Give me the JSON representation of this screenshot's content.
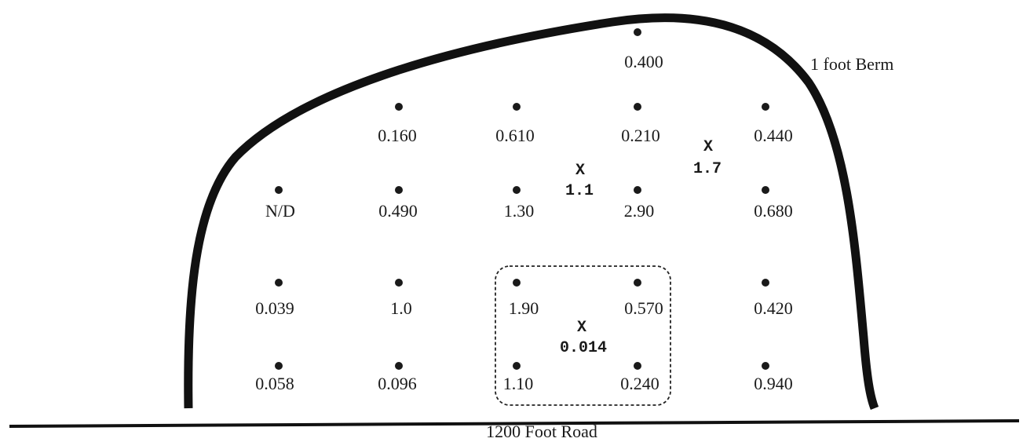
{
  "labels": {
    "berm": "1 foot Berm",
    "road": "1200 Foot Road"
  },
  "sample_points": [
    {
      "id": "p-top",
      "value": "0.400"
    },
    {
      "id": "p-r1c2",
      "value": "0.160"
    },
    {
      "id": "p-r1c3",
      "value": "0.610"
    },
    {
      "id": "p-r1c4",
      "value": "0.210"
    },
    {
      "id": "p-r1c5",
      "value": "0.440"
    },
    {
      "id": "p-r2c1",
      "value": "N/D"
    },
    {
      "id": "p-r2c2",
      "value": "0.490"
    },
    {
      "id": "p-r2c3",
      "value": "1.30"
    },
    {
      "id": "p-r2c4",
      "value": "2.90"
    },
    {
      "id": "p-r2c5",
      "value": "0.680"
    },
    {
      "id": "p-r3c1",
      "value": "0.039"
    },
    {
      "id": "p-r3c2",
      "value": "1.0"
    },
    {
      "id": "p-r3c3",
      "value": "1.90"
    },
    {
      "id": "p-r3c4",
      "value": "0.570"
    },
    {
      "id": "p-r3c5",
      "value": "0.420"
    },
    {
      "id": "p-r4c1",
      "value": "0.058"
    },
    {
      "id": "p-r4c2",
      "value": "0.096"
    },
    {
      "id": "p-r4c3",
      "value": "1.10"
    },
    {
      "id": "p-r4c4",
      "value": "0.240"
    },
    {
      "id": "p-r4c5",
      "value": "0.940"
    }
  ],
  "x_markers": [
    {
      "id": "x-center",
      "symbol": "X",
      "value": "1.1"
    },
    {
      "id": "x-right",
      "symbol": "X",
      "value": "1.7"
    },
    {
      "id": "x-box",
      "symbol": "X",
      "value": "0.014"
    }
  ]
}
